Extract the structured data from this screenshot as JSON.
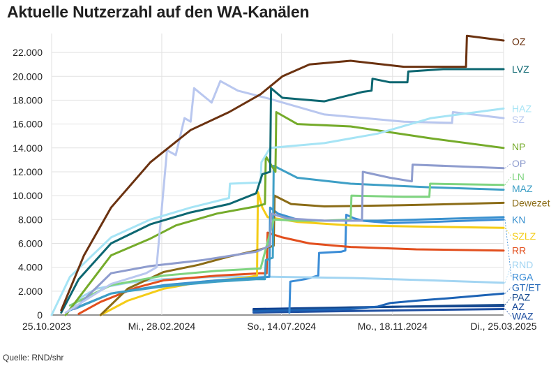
{
  "title": "Aktuelle Nutzerzahl auf den WA-Kanälen",
  "source": "Quelle: RND/shr",
  "chart_data": {
    "type": "line",
    "xaxis": {
      "start": "2023-10-25",
      "end": "2025-03-25",
      "ticks": [
        {
          "date": "2023-10-25",
          "label": "25.10.2023"
        },
        {
          "date": "2024-02-28",
          "label": "Mi., 28.02.2024"
        },
        {
          "date": "2024-07-14",
          "label": "So., 14.07.2024"
        },
        {
          "date": "2024-11-18",
          "label": "Mo., 18.11.2024"
        },
        {
          "date": "2025-03-25",
          "label": "Di., 25.03.2025"
        }
      ]
    },
    "ylim": [
      0,
      23500
    ],
    "yticks": [
      {
        "value": 0,
        "label": "0"
      },
      {
        "value": 2000,
        "label": "2.000"
      },
      {
        "value": 4000,
        "label": "4.000"
      },
      {
        "value": 6000,
        "label": "6.000"
      },
      {
        "value": 8000,
        "label": "8.000"
      },
      {
        "value": 10000,
        "label": "10.000"
      },
      {
        "value": 12000,
        "label": "12.000"
      },
      {
        "value": 14000,
        "label": "14.000"
      },
      {
        "value": 16000,
        "label": "16.000"
      },
      {
        "value": 18000,
        "label": "18.000"
      },
      {
        "value": 20000,
        "label": "20.000"
      },
      {
        "value": 22000,
        "label": "22.000"
      }
    ],
    "grid": true,
    "series": [
      {
        "name": "WAZ",
        "color": "#1f4fa0",
        "label_value": -100,
        "points": [
          [
            "2024-06-12",
            200
          ],
          [
            "2024-09-01",
            300
          ],
          [
            "2024-12-01",
            400
          ],
          [
            "2025-03-25",
            500
          ]
        ]
      },
      {
        "name": "AZ",
        "color": "#0c3f94",
        "label_value": 700,
        "points": [
          [
            "2024-06-12",
            500
          ],
          [
            "2024-09-01",
            600
          ],
          [
            "2024-12-01",
            700
          ],
          [
            "2025-03-25",
            750
          ]
        ]
      },
      {
        "name": "PAZ",
        "color": "#164a8e",
        "label_value": 1500,
        "points": [
          [
            "2024-06-12",
            400
          ],
          [
            "2024-08-01",
            500
          ],
          [
            "2024-09-15",
            600
          ],
          [
            "2024-12-01",
            700
          ],
          [
            "2025-03-25",
            850
          ]
        ]
      },
      {
        "name": "GT/ET",
        "color": "#1d63b5",
        "label_value": 2300,
        "points": [
          [
            "2024-06-12",
            300
          ],
          [
            "2024-07-20",
            400
          ],
          [
            "2024-10-01",
            500
          ],
          [
            "2024-11-01",
            700
          ],
          [
            "2024-11-15",
            1000
          ],
          [
            "2024-12-15",
            1200
          ],
          [
            "2025-01-20",
            1400
          ],
          [
            "2025-03-25",
            1800
          ]
        ]
      },
      {
        "name": "RGA",
        "color": "#3a8cd6",
        "label_value": 3200,
        "points": [
          [
            "2024-07-23",
            200
          ],
          [
            "2024-07-24",
            2800
          ],
          [
            "2024-08-10",
            3000
          ],
          [
            "2024-08-25",
            3300
          ],
          [
            "2024-08-26",
            5200
          ],
          [
            "2024-09-20",
            5300
          ],
          [
            "2024-09-25",
            5400
          ],
          [
            "2024-09-26",
            8400
          ],
          [
            "2024-10-05",
            8100
          ],
          [
            "2024-10-15",
            7900
          ],
          [
            "2024-11-15",
            7700
          ],
          [
            "2025-01-01",
            7800
          ],
          [
            "2025-03-25",
            8000
          ]
        ]
      },
      {
        "name": "RND",
        "color": "#a3d5f2",
        "label_value": 4200,
        "points": [
          [
            "2023-11-10",
            0
          ],
          [
            "2023-11-28",
            1500
          ],
          [
            "2023-12-15",
            2200
          ],
          [
            "2024-01-20",
            2700
          ],
          [
            "2024-03-01",
            3000
          ],
          [
            "2024-05-01",
            3200
          ],
          [
            "2024-07-01",
            3200
          ],
          [
            "2024-10-01",
            3100
          ],
          [
            "2025-01-01",
            2900
          ],
          [
            "2025-03-25",
            2700
          ]
        ]
      },
      {
        "name": "RR",
        "color": "#e24f1e",
        "label_value": 5400,
        "points": [
          [
            "2023-11-25",
            100
          ],
          [
            "2023-12-20",
            1100
          ],
          [
            "2024-01-30",
            2300
          ],
          [
            "2024-03-01",
            2900
          ],
          [
            "2024-05-01",
            3300
          ],
          [
            "2024-06-20",
            3500
          ],
          [
            "2024-06-27",
            3500
          ],
          [
            "2024-06-28",
            6900
          ],
          [
            "2024-07-15",
            6500
          ],
          [
            "2024-08-15",
            6000
          ],
          [
            "2024-10-01",
            5700
          ],
          [
            "2024-12-15",
            5500
          ],
          [
            "2025-03-25",
            5400
          ]
        ]
      },
      {
        "name": "SZLZ",
        "color": "#f4cc17",
        "label_value": 6600,
        "points": [
          [
            "2023-12-20",
            0
          ],
          [
            "2024-01-20",
            1200
          ],
          [
            "2024-03-01",
            2200
          ],
          [
            "2024-04-15",
            2800
          ],
          [
            "2024-06-01",
            3100
          ],
          [
            "2024-06-16",
            3300
          ],
          [
            "2024-06-17",
            10300
          ],
          [
            "2024-06-22",
            9000
          ],
          [
            "2024-06-28",
            8200
          ],
          [
            "2024-08-01",
            7800
          ],
          [
            "2024-10-01",
            7500
          ],
          [
            "2025-01-01",
            7400
          ],
          [
            "2025-03-25",
            7300
          ]
        ]
      },
      {
        "name": "KN",
        "color": "#3a91cf",
        "label_value": 8000,
        "points": [
          [
            "2023-11-15",
            400
          ],
          [
            "2024-01-01",
            1800
          ],
          [
            "2024-03-01",
            2500
          ],
          [
            "2024-05-01",
            2900
          ],
          [
            "2024-06-15",
            3100
          ],
          [
            "2024-06-30",
            3200
          ],
          [
            "2024-07-01",
            9000
          ],
          [
            "2024-07-10",
            8500
          ],
          [
            "2024-08-01",
            8000
          ],
          [
            "2024-09-01",
            7900
          ],
          [
            "2024-11-01",
            7900
          ],
          [
            "2025-03-25",
            8200
          ]
        ]
      },
      {
        "name": "Dewezet",
        "color": "#8b6c17",
        "label_value": 9400,
        "points": [
          [
            "2023-12-20",
            0
          ],
          [
            "2024-01-20",
            2200
          ],
          [
            "2024-03-01",
            3600
          ],
          [
            "2024-04-10",
            4200
          ],
          [
            "2024-05-15",
            4900
          ],
          [
            "2024-06-15",
            5400
          ],
          [
            "2024-07-05",
            5800
          ],
          [
            "2024-07-06",
            10000
          ],
          [
            "2024-07-25",
            9300
          ],
          [
            "2024-09-01",
            9100
          ],
          [
            "2024-12-01",
            9200
          ],
          [
            "2025-03-25",
            9400
          ]
        ]
      },
      {
        "name": "MAZ",
        "color": "#3e9fc6",
        "label_value": 10600,
        "points": [
          [
            "2023-11-20",
            500
          ],
          [
            "2024-01-01",
            1800
          ],
          [
            "2024-03-01",
            2400
          ],
          [
            "2024-05-01",
            2800
          ],
          [
            "2024-06-15",
            3000
          ],
          [
            "2024-06-25",
            3000
          ],
          [
            "2024-06-26",
            4600
          ],
          [
            "2024-07-04",
            4800
          ],
          [
            "2024-07-05",
            12500
          ],
          [
            "2024-08-01",
            11500
          ],
          [
            "2024-10-01",
            11000
          ],
          [
            "2025-01-01",
            10700
          ],
          [
            "2025-03-25",
            10500
          ]
        ]
      },
      {
        "name": "LN",
        "color": "#7fd480",
        "label_value": 11600,
        "points": [
          [
            "2023-11-15",
            800
          ],
          [
            "2024-01-01",
            2500
          ],
          [
            "2024-03-01",
            3300
          ],
          [
            "2024-05-01",
            3700
          ],
          [
            "2024-06-20",
            3900
          ],
          [
            "2024-07-05",
            8000
          ],
          [
            "2024-08-01",
            7900
          ],
          [
            "2024-09-01",
            7900
          ],
          [
            "2024-10-01",
            8000
          ],
          [
            "2024-10-02",
            10000
          ],
          [
            "2024-12-01",
            9900
          ],
          [
            "2024-12-30",
            9900
          ],
          [
            "2024-12-31",
            11000
          ],
          [
            "2025-03-25",
            10900
          ]
        ]
      },
      {
        "name": "OP",
        "color": "#8e9cce",
        "label_value": 12700,
        "points": [
          [
            "2023-11-20",
            500
          ],
          [
            "2024-01-01",
            3500
          ],
          [
            "2024-02-15",
            4100
          ],
          [
            "2024-04-15",
            4600
          ],
          [
            "2024-06-15",
            5300
          ],
          [
            "2024-07-01",
            5800
          ],
          [
            "2024-07-02",
            8500
          ],
          [
            "2024-07-20",
            8100
          ],
          [
            "2024-09-01",
            7900
          ],
          [
            "2024-10-14",
            7900
          ],
          [
            "2024-10-15",
            12000
          ],
          [
            "2024-11-15",
            11500
          ],
          [
            "2024-12-10",
            11200
          ],
          [
            "2024-12-11",
            12600
          ],
          [
            "2025-03-25",
            12300
          ]
        ]
      },
      {
        "name": "NP",
        "color": "#75ab2a",
        "label_value": 14100,
        "points": [
          [
            "2023-11-10",
            0
          ],
          [
            "2024-01-01",
            5000
          ],
          [
            "2024-02-15",
            6400
          ],
          [
            "2024-03-15",
            7500
          ],
          [
            "2024-05-01",
            8500
          ],
          [
            "2024-06-15",
            9100
          ],
          [
            "2024-06-25",
            9300
          ],
          [
            "2024-06-26",
            13300
          ],
          [
            "2024-07-07",
            12000
          ],
          [
            "2024-07-08",
            17000
          ],
          [
            "2024-08-01",
            16000
          ],
          [
            "2024-10-01",
            15800
          ],
          [
            "2025-01-01",
            14800
          ],
          [
            "2025-03-25",
            14000
          ]
        ]
      },
      {
        "name": "SZ",
        "color": "#b9c7ef",
        "label_value": 16400,
        "points": [
          [
            "2023-11-10",
            200
          ],
          [
            "2024-01-01",
            2600
          ],
          [
            "2024-02-10",
            3500
          ],
          [
            "2024-02-22",
            4000
          ],
          [
            "2024-03-05",
            13800
          ],
          [
            "2024-03-15",
            13400
          ],
          [
            "2024-03-25",
            16500
          ],
          [
            "2024-04-01",
            16200
          ],
          [
            "2024-04-05",
            19000
          ],
          [
            "2024-04-25",
            17800
          ],
          [
            "2024-05-05",
            19600
          ],
          [
            "2024-05-25",
            18800
          ],
          [
            "2024-07-01",
            18100
          ],
          [
            "2024-09-01",
            16800
          ],
          [
            "2024-12-01",
            16200
          ],
          [
            "2025-01-25",
            16100
          ],
          [
            "2025-01-26",
            17000
          ],
          [
            "2025-03-25",
            16500
          ]
        ]
      },
      {
        "name": "HAZ",
        "color": "#a6e4f5",
        "label_value": 17300,
        "points": [
          [
            "2023-10-25",
            0
          ],
          [
            "2023-11-15",
            3200
          ],
          [
            "2024-01-01",
            6500
          ],
          [
            "2024-02-15",
            8000
          ],
          [
            "2024-04-01",
            9000
          ],
          [
            "2024-05-15",
            9800
          ],
          [
            "2024-05-16",
            11000
          ],
          [
            "2024-06-20",
            11100
          ],
          [
            "2024-06-21",
            12800
          ],
          [
            "2024-07-01",
            14000
          ],
          [
            "2024-09-01",
            14400
          ],
          [
            "2024-11-01",
            15200
          ],
          [
            "2025-01-01",
            16500
          ],
          [
            "2025-03-25",
            17300
          ]
        ]
      },
      {
        "name": "LVZ",
        "color": "#0d6771",
        "label_value": 20600,
        "points": [
          [
            "2023-11-05",
            200
          ],
          [
            "2023-11-25",
            3000
          ],
          [
            "2024-01-01",
            6000
          ],
          [
            "2024-02-15",
            7600
          ],
          [
            "2024-04-01",
            8600
          ],
          [
            "2024-05-15",
            9300
          ],
          [
            "2024-06-15",
            10200
          ],
          [
            "2024-06-22",
            11800
          ],
          [
            "2024-07-01",
            12000
          ],
          [
            "2024-07-02",
            19000
          ],
          [
            "2024-07-15",
            18200
          ],
          [
            "2024-09-01",
            17900
          ],
          [
            "2024-10-15",
            18700
          ],
          [
            "2024-10-25",
            18800
          ],
          [
            "2024-10-26",
            19800
          ],
          [
            "2024-11-15",
            19500
          ],
          [
            "2024-12-05",
            19500
          ],
          [
            "2024-12-06",
            20400
          ],
          [
            "2025-01-15",
            20600
          ],
          [
            "2025-03-25",
            20600
          ]
        ]
      },
      {
        "name": "OZ",
        "color": "#6b3210",
        "label_value": 22900,
        "points": [
          [
            "2023-11-05",
            400
          ],
          [
            "2023-12-01",
            5000
          ],
          [
            "2024-01-01",
            9000
          ],
          [
            "2024-02-15",
            12800
          ],
          [
            "2024-04-01",
            15500
          ],
          [
            "2024-05-15",
            17000
          ],
          [
            "2024-06-20",
            18500
          ],
          [
            "2024-07-15",
            20000
          ],
          [
            "2024-08-15",
            21000
          ],
          [
            "2024-10-01",
            21300
          ],
          [
            "2024-12-01",
            20800
          ],
          [
            "2025-01-15",
            20800
          ],
          [
            "2025-02-10",
            20800
          ],
          [
            "2025-02-11",
            23400
          ],
          [
            "2025-03-25",
            23000
          ]
        ]
      }
    ]
  }
}
